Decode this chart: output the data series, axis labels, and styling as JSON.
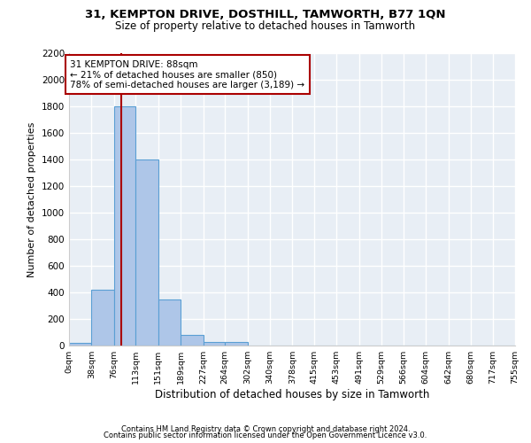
{
  "title": "31, KEMPTON DRIVE, DOSTHILL, TAMWORTH, B77 1QN",
  "subtitle": "Size of property relative to detached houses in Tamworth",
  "xlabel": "Distribution of detached houses by size in Tamworth",
  "ylabel": "Number of detached properties",
  "bar_color": "#aec6e8",
  "bar_edge_color": "#5a9fd4",
  "background_color": "#e8eef5",
  "grid_color": "white",
  "annotation_line_color": "#aa0000",
  "annotation_text_line1": "31 KEMPTON DRIVE: 88sqm",
  "annotation_text_line2": "← 21% of detached houses are smaller (850)",
  "annotation_text_line3": "78% of semi-detached houses are larger (3,189) →",
  "footer_line1": "Contains HM Land Registry data © Crown copyright and database right 2024.",
  "footer_line2": "Contains public sector information licensed under the Open Government Licence v3.0.",
  "property_size": 88,
  "bin_edges": [
    0,
    38,
    76,
    113,
    151,
    189,
    227,
    264,
    302,
    340,
    378,
    415,
    453,
    491,
    529,
    566,
    604,
    642,
    680,
    717,
    755
  ],
  "bin_counts": [
    20,
    420,
    1800,
    1400,
    350,
    80,
    30,
    25,
    0,
    0,
    0,
    0,
    0,
    0,
    0,
    0,
    0,
    0,
    0,
    0
  ],
  "ylim": [
    0,
    2200
  ],
  "yticks": [
    0,
    200,
    400,
    600,
    800,
    1000,
    1200,
    1400,
    1600,
    1800,
    2000,
    2200
  ],
  "tick_labels": [
    "0sqm",
    "38sqm",
    "76sqm",
    "113sqm",
    "151sqm",
    "189sqm",
    "227sqm",
    "264sqm",
    "302sqm",
    "340sqm",
    "378sqm",
    "415sqm",
    "453sqm",
    "491sqm",
    "529sqm",
    "566sqm",
    "604sqm",
    "642sqm",
    "680sqm",
    "717sqm",
    "755sqm"
  ]
}
